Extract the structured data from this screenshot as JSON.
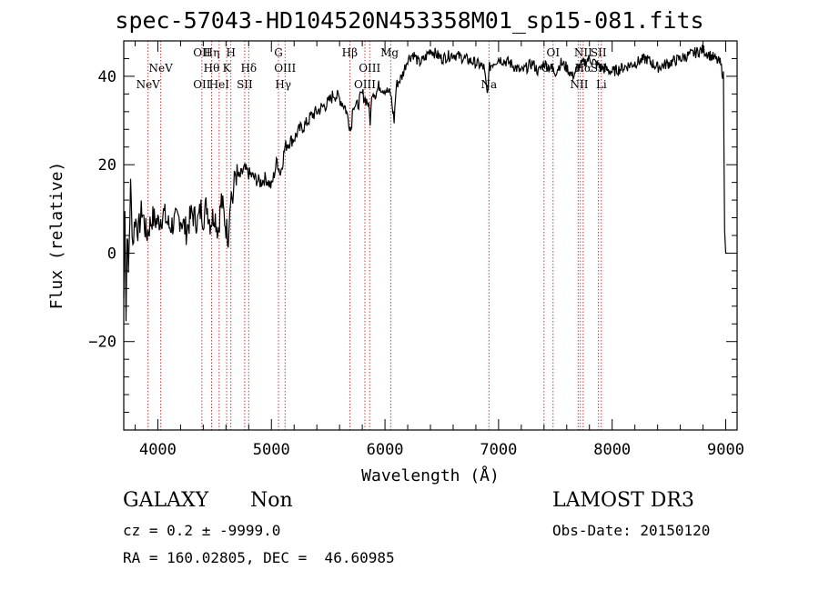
{
  "chart_data": {
    "type": "line",
    "title": "spec-57043-HD104520N453358M01_sp15-081.fits",
    "xlabel": "Wavelength (Å)",
    "ylabel": "Flux (relative)",
    "xlim": [
      3700,
      9100
    ],
    "ylim": [
      -40,
      48
    ],
    "xticks": [
      4000,
      5000,
      6000,
      7000,
      8000,
      9000
    ],
    "yticks": [
      -20,
      0,
      20,
      40
    ],
    "grid": false,
    "series": [
      {
        "x": [
          3700,
          3710,
          3720,
          3730,
          3740,
          3760,
          3780,
          3800,
          3830,
          3860,
          3900,
          3950,
          4000,
          4050,
          4100,
          4150,
          4200,
          4250,
          4300,
          4350,
          4380,
          4400,
          4430,
          4460,
          4500,
          4530,
          4560,
          4600,
          4620,
          4640,
          4660,
          4680,
          4720,
          4760,
          4800,
          4850,
          4900,
          4950,
          5000,
          5050,
          5080,
          5120,
          5150,
          5200,
          5250,
          5300,
          5350,
          5400,
          5450,
          5500,
          5550,
          5600,
          5650,
          5700,
          5720,
          5750,
          5800,
          5850,
          5870,
          5890,
          5920,
          5950,
          6000,
          6050,
          6080,
          6100,
          6150,
          6200,
          6250,
          6300,
          6350,
          6400,
          6500,
          6600,
          6700,
          6800,
          6870,
          6900,
          6920,
          6950,
          7000,
          7100,
          7200,
          7250,
          7300,
          7350,
          7400,
          7450,
          7500,
          7550,
          7600,
          7650,
          7700,
          7750,
          7800,
          7850,
          7900,
          8000,
          8100,
          8200,
          8300,
          8400,
          8500,
          8600,
          8700,
          8800,
          8850,
          8900,
          8950,
          8980,
          8990,
          9000,
          9010
        ],
        "y": [
          -10,
          12,
          -15,
          6,
          -5,
          15,
          2,
          8,
          5,
          10,
          4,
          8,
          7,
          9,
          6,
          7,
          8,
          5,
          9,
          7,
          10,
          8,
          11,
          7,
          9,
          5,
          12,
          6,
          4,
          14,
          12,
          18,
          17,
          19,
          18,
          17,
          16,
          17,
          15,
          21,
          18,
          24,
          25,
          26,
          28,
          29,
          31,
          32,
          33,
          34,
          36,
          35,
          33,
          28,
          34,
          33,
          36,
          34,
          30,
          37,
          36,
          38,
          37,
          36,
          30,
          38,
          40,
          44,
          45,
          43,
          44,
          46,
          44,
          45,
          44,
          43,
          42,
          36,
          42,
          43,
          44,
          43,
          41,
          42,
          43,
          41,
          43,
          42,
          41,
          43,
          42,
          40,
          42,
          43,
          44,
          43,
          42,
          41,
          42,
          43,
          44,
          42,
          43,
          44,
          45,
          46,
          45,
          44,
          43,
          40,
          5,
          0,
          0
        ]
      }
    ],
    "spectral_lines": [
      {
        "label": "NeV",
        "x": 3914,
        "row": 3
      },
      {
        "label": "NeV",
        "x": 4026,
        "row": 2
      },
      {
        "label": "OII",
        "x": 4388,
        "row": 1
      },
      {
        "label": "OII",
        "x": 4388,
        "row": 3
      },
      {
        "label": "Hη",
        "x": 4473,
        "row": 1
      },
      {
        "label": "Hθ",
        "x": 4473,
        "row": 2
      },
      {
        "label": "HeI",
        "x": 4540,
        "row": 3
      },
      {
        "label": "K",
        "x": 4606,
        "row": 2
      },
      {
        "label": "H",
        "x": 4643,
        "row": 1
      },
      {
        "label": "Hδ",
        "x": 4800,
        "row": 2
      },
      {
        "label": "SII",
        "x": 4765,
        "row": 3
      },
      {
        "label": "G",
        "x": 5062,
        "row": 1
      },
      {
        "label": "OIII",
        "x": 5120,
        "row": 2
      },
      {
        "label": "Hγ",
        "x": 5104,
        "row": 3
      },
      {
        "label": "Hβ",
        "x": 5690,
        "row": 1
      },
      {
        "label": "OIII",
        "x": 5865,
        "row": 2
      },
      {
        "label": "OIII",
        "x": 5823,
        "row": 3
      },
      {
        "label": "Mg",
        "x": 6040,
        "row": 1
      },
      {
        "label": "Na",
        "x": 6915,
        "row": 3
      },
      {
        "label": "OI",
        "x": 7480,
        "row": 1
      },
      {
        "label": "OI",
        "x": 7435,
        "row": 2
      },
      {
        "label": "NII",
        "x": 7745,
        "row": 1
      },
      {
        "label": "SII",
        "x": 7880,
        "row": 1
      },
      {
        "label": "Hα",
        "x": 7745,
        "row": 2
      },
      {
        "label": "SII",
        "x": 7880,
        "row": 2
      },
      {
        "label": "NII",
        "x": 7710,
        "row": 3
      },
      {
        "label": "Li",
        "x": 7905,
        "row": 3
      }
    ],
    "line_marker_x": [
      3914,
      4026,
      4388,
      4473,
      4540,
      4606,
      4643,
      4765,
      4800,
      5062,
      5120,
      5690,
      5823,
      5865,
      6050,
      6915,
      7400,
      7480,
      7700,
      7720,
      7745,
      7880,
      7905
    ]
  },
  "info": {
    "class_label": "GALAXY",
    "subclass_label": "Non",
    "redshift": "cz = 0.2 ± -9999.0",
    "coordinates": "RA = 160.02805, DEC =  46.60985",
    "survey": "LAMOST DR3",
    "obs_date": "Obs-Date: 20150120"
  },
  "colors": {
    "marker_line": "#cc2222",
    "axis": "#000000",
    "spectrum": "#000000"
  }
}
